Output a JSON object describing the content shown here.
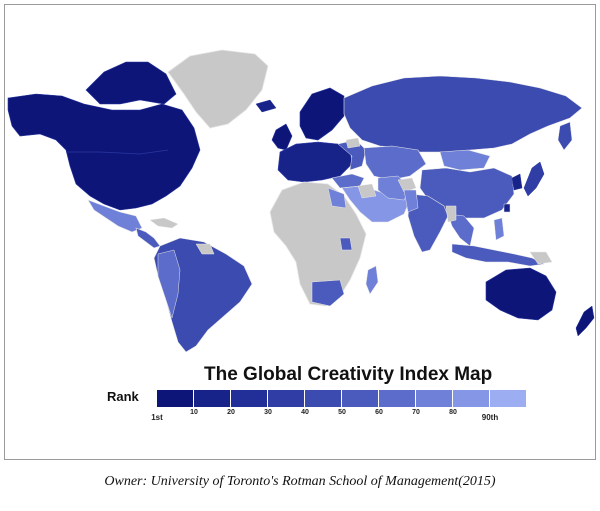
{
  "title": "The Global Creativity Index Map",
  "legend": {
    "label": "Rank",
    "tick_labels": [
      "1st",
      "10",
      "20",
      "30",
      "40",
      "50",
      "60",
      "70",
      "80",
      "90th"
    ],
    "colors": [
      "#0d1678",
      "#18238a",
      "#222f99",
      "#2f3da5",
      "#3c4bb0",
      "#4b5bbd",
      "#5c6ccb",
      "#6f80d9",
      "#8596e6",
      "#9dadf2"
    ]
  },
  "caption": "Owner:  University of Toronto's Rotman School of Management(2015)",
  "colors": {
    "no_data": "#c8c8c8",
    "ocean": "#ffffff",
    "border": "#e6e6e6"
  }
}
